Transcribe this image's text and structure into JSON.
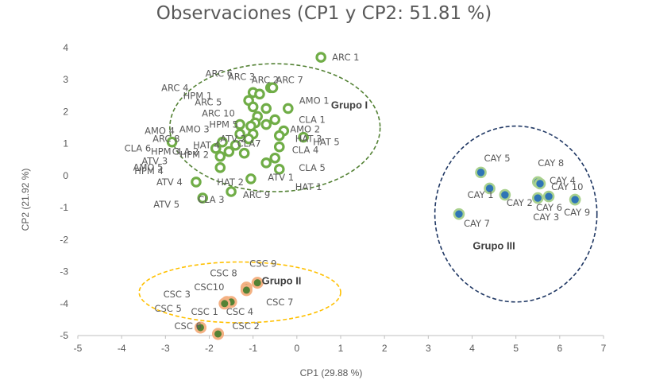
{
  "chart_data": {
    "type": "scatter",
    "title": "Observaciones (CP1 y CP2: 51.81 %)",
    "xlabel": "CP1 (29.88 %)",
    "ylabel": "CP2 (21.92 %)",
    "xlim": [
      -5,
      7
    ],
    "ylim": [
      -5,
      4
    ],
    "xticks": [
      -5,
      -4,
      -3,
      -2,
      -1,
      0,
      1,
      2,
      3,
      4,
      5,
      6,
      7
    ],
    "yticks": [
      -5,
      -4,
      -3,
      -2,
      -1,
      0,
      1,
      2,
      3,
      4
    ],
    "grid": false,
    "colors": {
      "grupo_I": "#70ad47",
      "grupo_II_fill": "#548235",
      "grupo_II_ring": "#f4b183",
      "grupo_III_fill": "#2e75b6",
      "grupo_III_ring": "#a9d18e",
      "ellipse_I": "#548235",
      "ellipse_II": "#ffc000",
      "ellipse_III": "#203864"
    },
    "groups": [
      {
        "label": "Grupo I",
        "cx": -0.5,
        "cy": 1.5,
        "rx": 2.4,
        "ry": 2.0,
        "label_x": 1.2,
        "label_y": 2.1
      },
      {
        "label": "Grupo II",
        "cx": -1.3,
        "cy": -3.65,
        "rx": 2.3,
        "ry": 0.95,
        "label_x": -0.35,
        "label_y": -3.4
      },
      {
        "label": "Grupo III",
        "cx": 5.0,
        "cy": -1.2,
        "rx": 1.85,
        "ry": 2.75,
        "label_x": 4.5,
        "label_y": -2.3
      }
    ],
    "series": [
      {
        "name": "Grupo I",
        "points": [
          {
            "label": "ARC 1",
            "x": 0.55,
            "y": 3.7
          },
          {
            "label": "ARC 2",
            "x": -0.6,
            "y": 2.75
          },
          {
            "label": "ARC 7",
            "x": -0.55,
            "y": 2.75
          },
          {
            "label": "ARC 6",
            "x": -1.0,
            "y": 2.6
          },
          {
            "label": "ARC 3",
            "x": -0.85,
            "y": 2.55
          },
          {
            "label": "ARC 4",
            "x": -1.1,
            "y": 2.35
          },
          {
            "label": "HPM 1",
            "x": -1.0,
            "y": 2.15
          },
          {
            "label": "AMO 1",
            "x": -0.2,
            "y": 2.1
          },
          {
            "label": "ARC 5",
            "x": -0.7,
            "y": 2.1
          },
          {
            "label": "ARC 10",
            "x": -0.9,
            "y": 1.85
          },
          {
            "label": "CLA 1",
            "x": -0.5,
            "y": 1.75
          },
          {
            "label": "HPM 5",
            "x": -0.95,
            "y": 1.65
          },
          {
            "label": "AMO 3",
            "x": -1.05,
            "y": 1.55
          },
          {
            "label": "AMO 2",
            "x": -0.7,
            "y": 1.6
          },
          {
            "label": "AMO 4",
            "x": -1.3,
            "y": 1.6
          },
          {
            "label": "ATV 2",
            "x": -0.3,
            "y": 1.4
          },
          {
            "label": "CLA7",
            "x": -1.0,
            "y": 1.3
          },
          {
            "label": "ARC 8",
            "x": -1.3,
            "y": 1.3
          },
          {
            "label": "HAT 3",
            "x": -0.4,
            "y": 1.25
          },
          {
            "label": "HAT 4",
            "x": -1.1,
            "y": 1.15
          },
          {
            "label": "HPM 3",
            "x": -1.7,
            "y": 1.05
          },
          {
            "label": "HPM 2",
            "x": -1.4,
            "y": 0.95
          },
          {
            "label": "HAT 5",
            "x": 0.15,
            "y": 1.2
          },
          {
            "label": "CLA 6",
            "x": -2.85,
            "y": 1.05
          },
          {
            "label": "CLA 4",
            "x": -0.4,
            "y": 0.9
          },
          {
            "label": "CLA 2",
            "x": -1.85,
            "y": 0.85
          },
          {
            "label": "ATV 3",
            "x": -1.55,
            "y": 0.75
          },
          {
            "label": "AMO 5",
            "x": -1.2,
            "y": 0.7
          },
          {
            "label": "HPM 4",
            "x": -1.75,
            "y": 0.6
          },
          {
            "label": "CLA 5",
            "x": -0.5,
            "y": 0.55
          },
          {
            "label": "ATV 1",
            "x": -0.7,
            "y": 0.4
          },
          {
            "label": "HAT 2",
            "x": -1.75,
            "y": 0.25
          },
          {
            "label": "HAT 1",
            "x": -0.4,
            "y": 0.2
          },
          {
            "label": "ATV 4",
            "x": -2.3,
            "y": -0.2
          },
          {
            "label": "ARC 9",
            "x": -1.05,
            "y": -0.1
          },
          {
            "label": "ATV 5",
            "x": -2.15,
            "y": -0.7
          },
          {
            "label": "CLA 3",
            "x": -1.5,
            "y": -0.5
          }
        ]
      },
      {
        "name": "Grupo II",
        "points": [
          {
            "label": "CSC 8",
            "x": -1.15,
            "y": -3.5
          },
          {
            "label": "CSC 9",
            "x": -0.9,
            "y": -3.35
          },
          {
            "label": "CSC10",
            "x": -1.15,
            "y": -3.58
          },
          {
            "label": "CSC 3",
            "x": -1.6,
            "y": -3.95
          },
          {
            "label": "CSC 7",
            "x": -1.5,
            "y": -3.95
          },
          {
            "label": "CSC 4",
            "x": -1.65,
            "y": -4.0
          },
          {
            "label": "CSC 5",
            "x": -2.2,
            "y": -4.75
          },
          {
            "label": "CSC 1",
            "x": -2.2,
            "y": -4.75
          },
          {
            "label": "CSC 6",
            "x": -1.8,
            "y": -4.95
          },
          {
            "label": "CSC 2",
            "x": -1.8,
            "y": -4.95
          }
        ]
      },
      {
        "name": "Grupo III",
        "points": [
          {
            "label": "CAY 5",
            "x": 4.2,
            "y": 0.1
          },
          {
            "label": "CAY 8",
            "x": 5.5,
            "y": -0.2
          },
          {
            "label": "CAY 4",
            "x": 5.55,
            "y": -0.25
          },
          {
            "label": "CAY 10",
            "x": 6.35,
            "y": -0.75
          },
          {
            "label": "CAY 1",
            "x": 4.4,
            "y": -0.4
          },
          {
            "label": "CAY 2",
            "x": 4.75,
            "y": -0.6
          },
          {
            "label": "CAY 3",
            "x": 5.5,
            "y": -0.7
          },
          {
            "label": "CAY 6",
            "x": 5.75,
            "y": -0.65
          },
          {
            "label": "CAY 9",
            "x": 6.35,
            "y": -0.75
          },
          {
            "label": "CAY 7",
            "x": 3.7,
            "y": -1.2
          }
        ]
      }
    ]
  }
}
